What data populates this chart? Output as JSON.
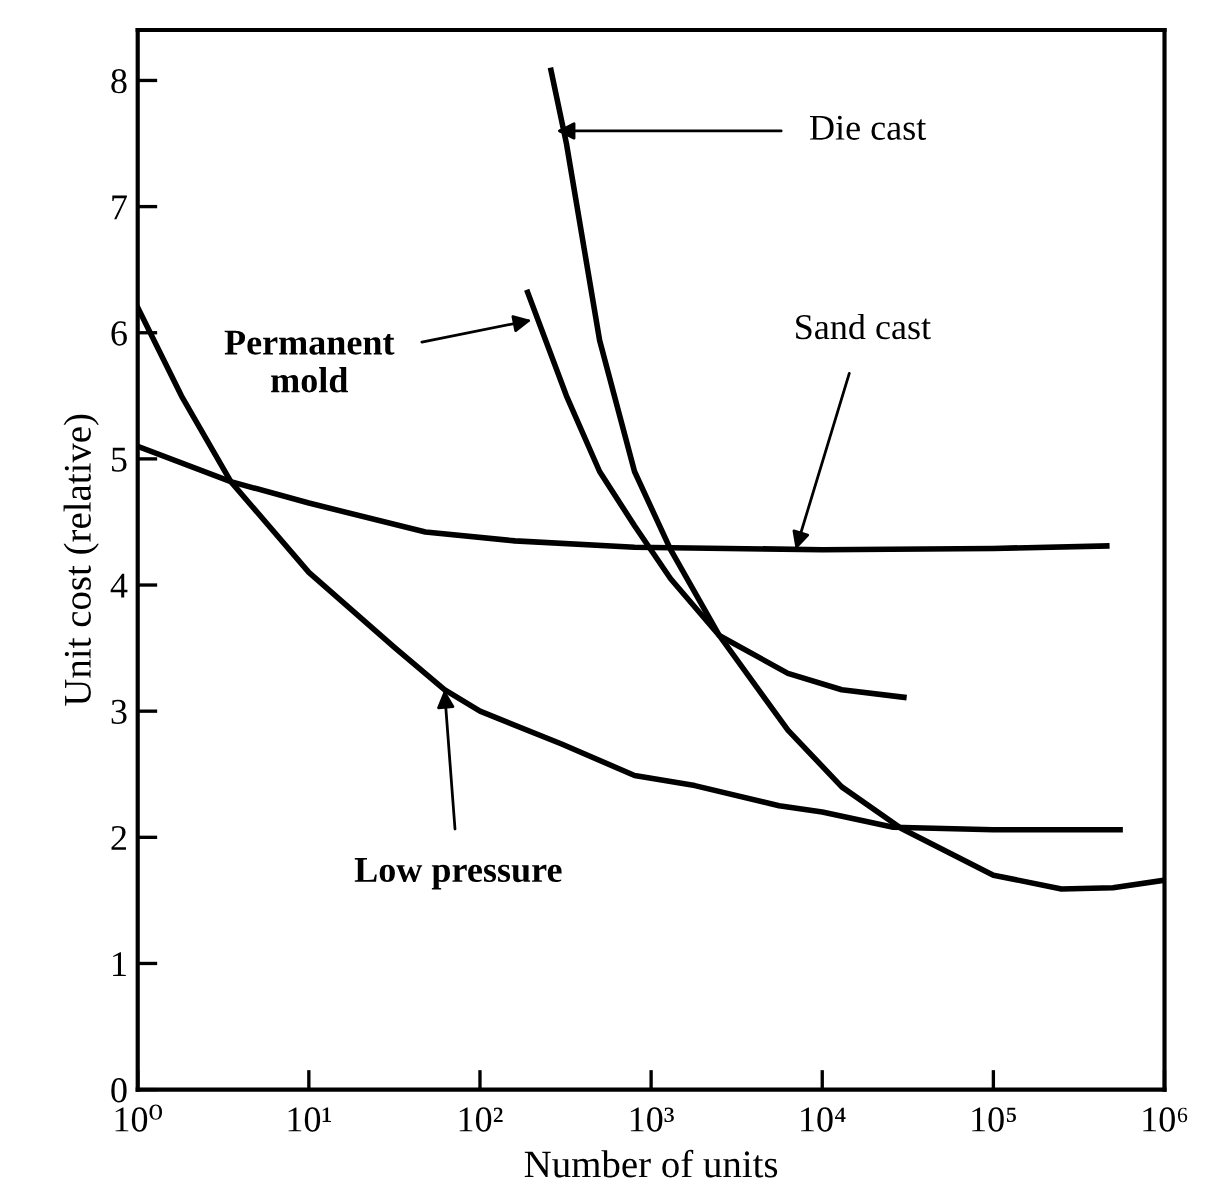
{
  "chart_data": {
    "type": "line",
    "xlabel": "Number of units",
    "ylabel": "Unit cost (relative)",
    "log": "x",
    "grid": false,
    "marker": "none",
    "line_style": "solid",
    "xlim": [
      1,
      1000000
    ],
    "xticks": [
      {
        "value": 1,
        "label": "10⁰"
      },
      {
        "value": 10,
        "label": "10¹"
      },
      {
        "value": 100,
        "label": "10²"
      },
      {
        "value": 1000,
        "label": "10³"
      },
      {
        "value": 10000,
        "label": "10⁴"
      },
      {
        "value": 100000,
        "label": "10⁵"
      },
      {
        "value": 1000000,
        "label": "10⁶"
      }
    ],
    "ylim": [
      0,
      8.4
    ],
    "yticks": [
      0,
      1,
      2,
      3,
      4,
      5,
      6,
      7,
      8
    ],
    "series": [
      {
        "color": "#000000",
        "x": [
          1,
          1.8,
          3.5,
          10,
          32,
          62,
          100,
          300,
          800,
          1800,
          5600,
          10000,
          26000,
          100000,
          550000
        ],
        "values": [
          6.2,
          5.5,
          4.82,
          4.1,
          3.5,
          3.17,
          3.0,
          2.74,
          2.49,
          2.41,
          2.25,
          2.2,
          2.08,
          2.06,
          2.06
        ]
      },
      {
        "color": "#000000",
        "x": [
          1,
          3.5,
          10,
          48,
          160,
          800,
          10000,
          100000,
          460000
        ],
        "values": [
          5.1,
          4.82,
          4.65,
          4.42,
          4.35,
          4.3,
          4.28,
          4.29,
          4.31
        ]
      },
      {
        "color": "#000000",
        "x": [
          190,
          320,
          500,
          800,
          1300,
          2500,
          6300,
          13000,
          30000
        ],
        "values": [
          6.32,
          5.5,
          4.9,
          4.47,
          4.05,
          3.6,
          3.3,
          3.17,
          3.11
        ]
      },
      {
        "color": "#000000",
        "x": [
          260,
          320,
          500,
          800,
          1300,
          2500,
          6300,
          13000,
          29000,
          100000,
          250000,
          500000,
          1000000
        ],
        "values": [
          8.08,
          7.5,
          5.94,
          4.9,
          4.28,
          3.6,
          2.85,
          2.4,
          2.07,
          1.7,
          1.59,
          1.6,
          1.66
        ]
      }
    ],
    "annotations": [
      {
        "text": "Die cast",
        "x": 280,
        "y": 7.6
      },
      {
        "text": "Permanent\nmold",
        "x": 200,
        "y": 6.1
      },
      {
        "text": "Sand cast",
        "x": 7000,
        "y": 4.28
      },
      {
        "text": "Low pressure",
        "x": 62,
        "y": 3.17
      }
    ]
  }
}
